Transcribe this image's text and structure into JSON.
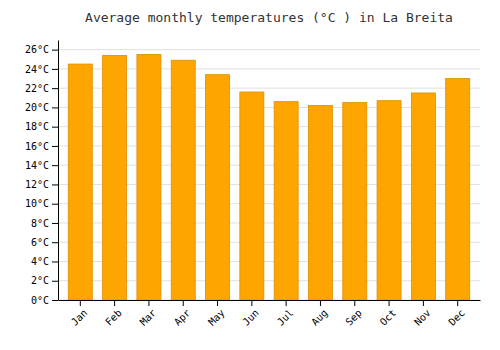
{
  "chart_data": {
    "type": "bar",
    "title": "Average monthly temperatures (°C ) in La Breita",
    "categories": [
      "Jan",
      "Feb",
      "Mar",
      "Apr",
      "May",
      "Jun",
      "Jul",
      "Aug",
      "Sep",
      "Oct",
      "Nov",
      "Dec"
    ],
    "values": [
      24.5,
      25.4,
      25.5,
      24.9,
      23.4,
      21.6,
      20.6,
      20.2,
      20.5,
      20.7,
      21.5,
      23.0
    ],
    "color": "#FFA500",
    "ylim": [
      0,
      27
    ],
    "yticks": [
      {
        "value": 0,
        "label": "0°C"
      },
      {
        "value": 2,
        "label": "2°C"
      },
      {
        "value": 4,
        "label": "4°C"
      },
      {
        "value": 6,
        "label": "6°C"
      },
      {
        "value": 8,
        "label": "8°C"
      },
      {
        "value": 10,
        "label": "10°C"
      },
      {
        "value": 12,
        "label": "12°C"
      },
      {
        "value": 14,
        "label": "14°C"
      },
      {
        "value": 16,
        "label": "16°C"
      },
      {
        "value": 18,
        "label": "18°C"
      },
      {
        "value": 20,
        "label": "20°C"
      },
      {
        "value": 22,
        "label": "22°C"
      },
      {
        "value": 24,
        "label": "24°C"
      },
      {
        "value": 26,
        "label": "26°C"
      }
    ],
    "grid": true
  }
}
